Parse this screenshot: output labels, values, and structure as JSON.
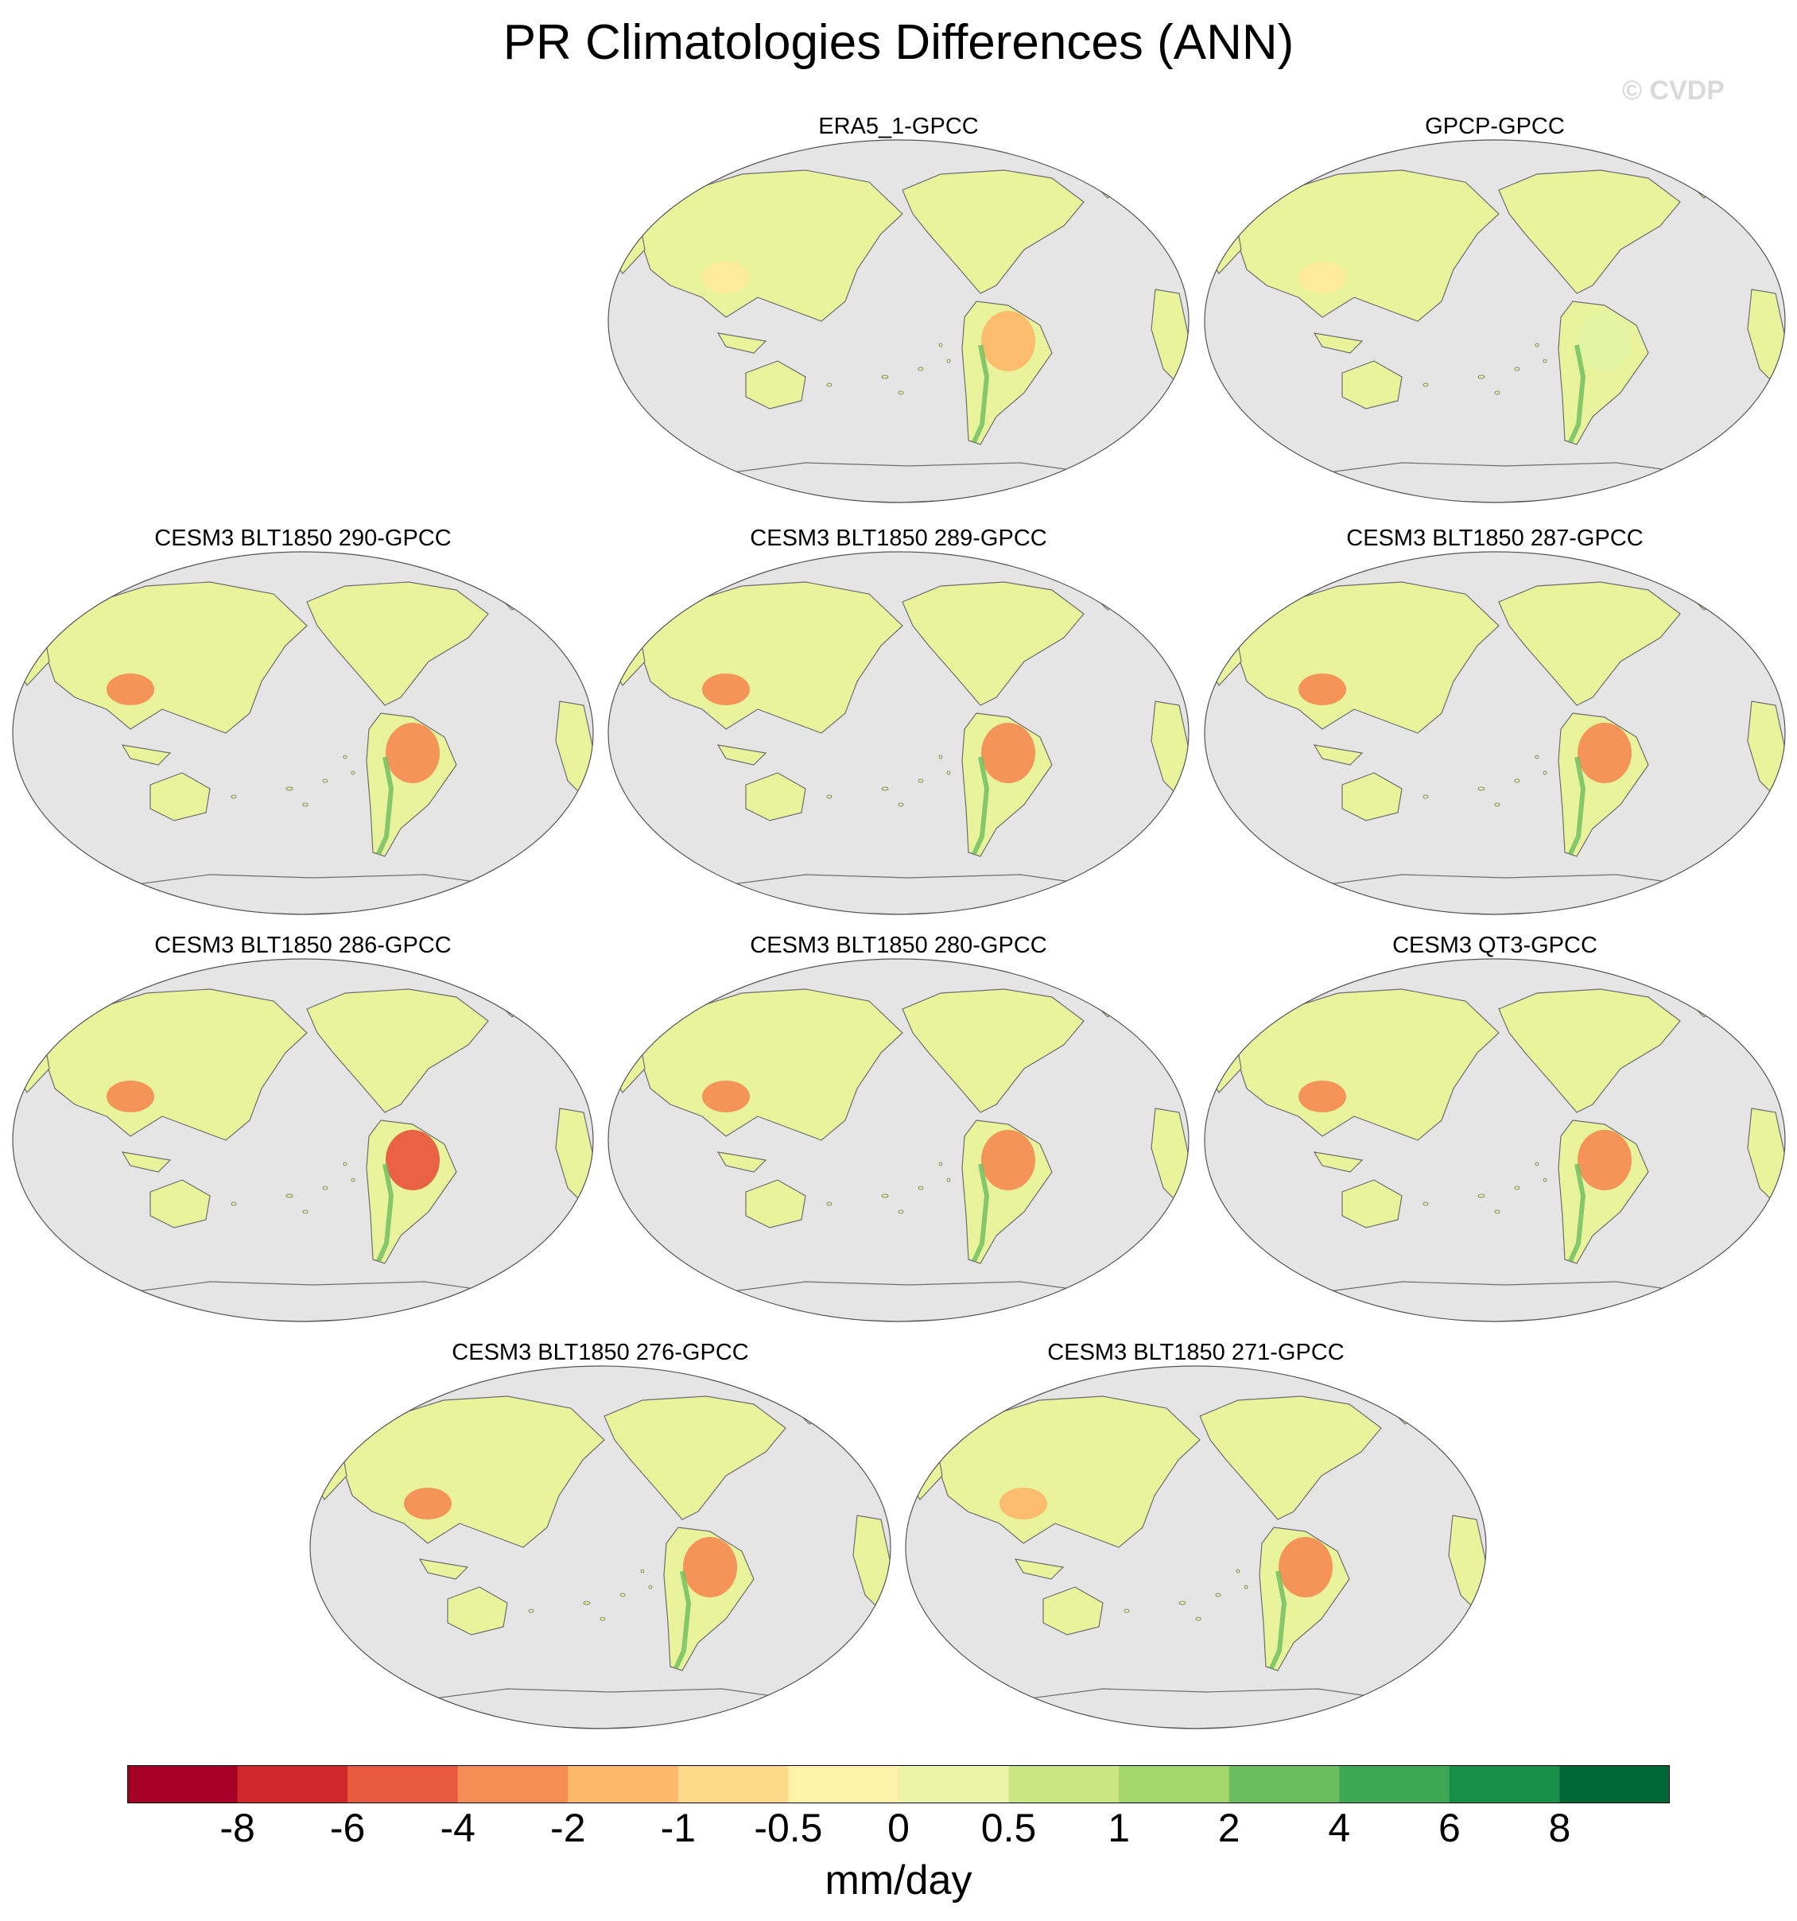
{
  "title": "PR Climatologies Differences (ANN)",
  "watermark": "© CVDP",
  "panels": [
    {
      "label": "ERA5_1-GPCC",
      "amazon": "#fdb86a",
      "asia": "#fee99a"
    },
    {
      "label": "GPCP-GPCC",
      "amazon": "#e3f3a3",
      "asia": "#fee99a"
    },
    {
      "label": "CESM3 BLT1850 290-GPCC",
      "amazon": "#f58e55",
      "asia": "#f58e55"
    },
    {
      "label": "CESM3 BLT1850 289-GPCC",
      "amazon": "#f58e55",
      "asia": "#f58e55"
    },
    {
      "label": "CESM3 BLT1850 287-GPCC",
      "amazon": "#f58e55",
      "asia": "#f58e55"
    },
    {
      "label": "CESM3 BLT1850 286-GPCC",
      "amazon": "#e85a3e",
      "asia": "#f58e55"
    },
    {
      "label": "CESM3 BLT1850 280-GPCC",
      "amazon": "#f58e55",
      "asia": "#f58e55"
    },
    {
      "label": "CESM3 QT3-GPCC",
      "amazon": "#f58e55",
      "asia": "#f58e55"
    },
    {
      "label": "CESM3 BLT1850 276-GPCC",
      "amazon": "#f58e55",
      "asia": "#f58e55"
    },
    {
      "label": "CESM3 BLT1850 271-GPCC",
      "amazon": "#f58e55",
      "asia": "#fdb86a"
    }
  ],
  "colorbar": {
    "colors": [
      "#a50026",
      "#d0272a",
      "#e85a3e",
      "#f58e55",
      "#fdb86a",
      "#fed98a",
      "#fef1a8",
      "#ebf5a8",
      "#c9e682",
      "#a2d56a",
      "#6cbd5f",
      "#3da853",
      "#178f49",
      "#006837"
    ],
    "ticks": [
      "-8",
      "-6",
      "-4",
      "-2",
      "-1",
      "-0.5",
      "0",
      "0.5",
      "1",
      "2",
      "4",
      "6",
      "8"
    ],
    "units": "mm/day"
  },
  "map_colors": {
    "ocean": "#e5e5e5",
    "land": "#e8f39c",
    "coast": "#6e6e6e"
  }
}
